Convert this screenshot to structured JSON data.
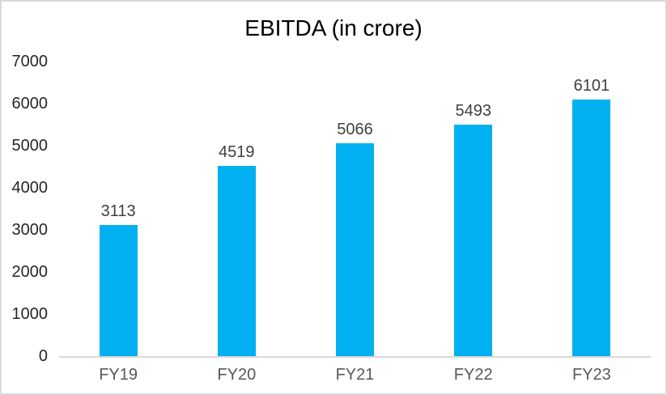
{
  "window": {
    "background": "#FFFFFF",
    "border_color": "#D9D9D9"
  },
  "chart_data": {
    "type": "bar",
    "title": "EBITDA (in crore)",
    "categories": [
      "FY19",
      "FY20",
      "FY21",
      "FY22",
      "FY23"
    ],
    "values": [
      3113,
      4519,
      5066,
      5493,
      6101
    ],
    "data_labels": [
      "3113",
      "4519",
      "5066",
      "5493",
      "6101"
    ],
    "xlabel": "",
    "ylabel": "",
    "ylim": [
      0,
      7000
    ],
    "yticks": [
      0,
      1000,
      2000,
      3000,
      4000,
      5000,
      6000,
      7000
    ],
    "grid": false,
    "legend_position": "none",
    "bar_color": "#00B0F0",
    "title_color": "#000000",
    "data_label_color": "#404040",
    "ytick_color": "#262626",
    "xtick_color": "#595959",
    "axis_line_color": "#D9D9D9",
    "plot_background": "#FFFFFF"
  }
}
